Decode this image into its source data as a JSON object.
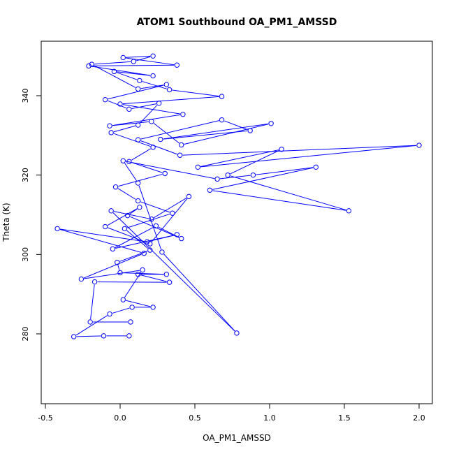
{
  "chart_data": {
    "type": "line",
    "title": "ATOM1 Southbound OA_PM1_AMSSD",
    "xlabel": "OA_PM1_AMSSD",
    "ylabel": "Theta (K)",
    "xlim": [
      -0.5,
      2.0
    ],
    "ylim": [
      280,
      340
    ],
    "x_ticks": [
      "-0.5",
      "0.0",
      "0.5",
      "1.0",
      "1.5",
      "2.0"
    ],
    "y_ticks": [
      "280",
      "300",
      "320",
      "340"
    ],
    "grid": false,
    "legend": "none",
    "series_color": "#0000ff",
    "marker": "open-circle",
    "series": [
      {
        "values": [
          [
            0.06,
            279.5
          ],
          [
            -0.11,
            279.5
          ],
          [
            -0.31,
            279.3
          ],
          [
            -0.07,
            285.0
          ],
          [
            0.08,
            286.7
          ],
          [
            0.22,
            286.7
          ],
          [
            0.02,
            288.6
          ],
          [
            0.15,
            296.1
          ],
          [
            -0.26,
            293.8
          ],
          [
            0.16,
            300.3
          ],
          [
            -0.42,
            306.5
          ],
          [
            0.18,
            303.2
          ],
          [
            0.38,
            305.0
          ],
          [
            -0.05,
            301.4
          ],
          [
            0.24,
            307.2
          ],
          [
            0.41,
            304.0
          ],
          [
            0.05,
            309.8
          ],
          [
            0.13,
            311.9
          ],
          [
            -0.1,
            307.0
          ],
          [
            0.2,
            302.7
          ],
          [
            0.46,
            314.6
          ],
          [
            0.21,
            308.9
          ],
          [
            -0.06,
            311.0
          ],
          [
            0.78,
            280.2
          ],
          [
            0.28,
            300.6
          ],
          [
            0.12,
            318.0
          ],
          [
            0.02,
            323.6
          ],
          [
            0.65,
            319.0
          ],
          [
            0.89,
            320.0
          ],
          [
            1.31,
            322.0
          ],
          [
            0.6,
            316.2
          ],
          [
            1.53,
            311.0
          ],
          [
            0.72,
            320.0
          ],
          [
            1.08,
            326.5
          ],
          [
            0.52,
            322.0
          ],
          [
            2.0,
            327.5
          ],
          [
            0.4,
            325.0
          ],
          [
            0.12,
            328.9
          ],
          [
            0.68,
            333.9
          ],
          [
            0.87,
            331.2
          ],
          [
            0.27,
            329.0
          ],
          [
            1.01,
            333.0
          ],
          [
            0.41,
            327.6
          ],
          [
            0.21,
            333.5
          ],
          [
            -0.07,
            332.4
          ],
          [
            0.42,
            335.3
          ],
          [
            0.0,
            337.9
          ],
          [
            0.68,
            339.8
          ],
          [
            0.33,
            341.5
          ],
          [
            0.13,
            343.8
          ],
          [
            -0.04,
            346.1
          ],
          [
            0.22,
            345.0
          ],
          [
            -0.21,
            347.5
          ],
          [
            0.38,
            347.7
          ],
          [
            0.02,
            349.6
          ],
          [
            0.22,
            350.0
          ],
          [
            0.09,
            348.6
          ],
          [
            -0.19,
            347.9
          ],
          [
            0.12,
            341.7
          ],
          [
            0.31,
            342.8
          ],
          [
            -0.1,
            339.0
          ],
          [
            0.06,
            336.6
          ],
          [
            0.26,
            338.1
          ],
          [
            0.12,
            332.6
          ],
          [
            -0.06,
            330.7
          ],
          [
            0.22,
            327.0
          ],
          [
            0.06,
            323.4
          ],
          [
            0.3,
            320.4
          ],
          [
            -0.03,
            317.0
          ],
          [
            0.12,
            313.5
          ],
          [
            0.35,
            310.4
          ],
          [
            0.03,
            306.5
          ],
          [
            0.2,
            301.1
          ],
          [
            -0.02,
            298.0
          ],
          [
            0.0,
            295.4
          ],
          [
            0.31,
            295.0
          ],
          [
            0.12,
            295.0
          ],
          [
            0.33,
            293.0
          ],
          [
            -0.17,
            293.1
          ],
          [
            -0.2,
            283.0
          ],
          [
            0.07,
            283.0
          ]
        ]
      }
    ]
  }
}
